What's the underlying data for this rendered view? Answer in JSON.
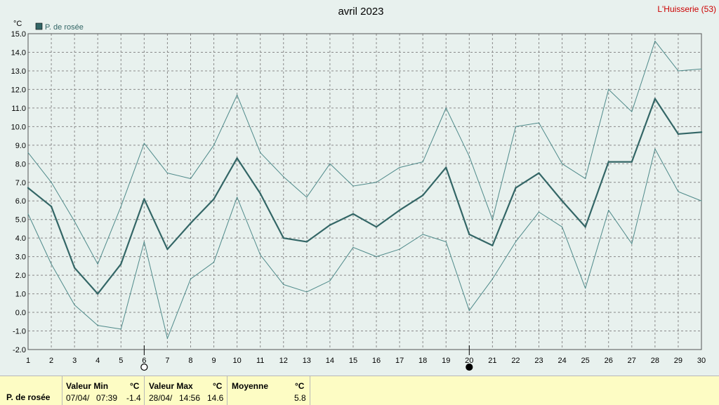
{
  "location": "L'Huisserie (53)",
  "chart_data": {
    "type": "line",
    "title": "avril 2023",
    "ylabel": "°C",
    "xlabel": "",
    "x": [
      1,
      2,
      3,
      4,
      5,
      6,
      7,
      8,
      9,
      10,
      11,
      12,
      13,
      14,
      15,
      16,
      17,
      18,
      19,
      20,
      21,
      22,
      23,
      24,
      25,
      26,
      27,
      28,
      29,
      30
    ],
    "xlim": [
      1,
      30
    ],
    "ylim": [
      -2.0,
      15.0
    ],
    "yticks": [
      "-2.0",
      "-1.0",
      "0.0",
      "1.0",
      "2.0",
      "3.0",
      "4.0",
      "5.0",
      "6.0",
      "7.0",
      "8.0",
      "9.0",
      "10.0",
      "11.0",
      "12.0",
      "13.0",
      "14.0",
      "15.0"
    ],
    "grid": true,
    "legend_position": "top-left",
    "series": [
      {
        "name": "P. de rosée",
        "role": "mean",
        "color": "#336666",
        "values": [
          6.7,
          5.7,
          2.4,
          1.0,
          2.6,
          6.1,
          3.4,
          4.8,
          6.1,
          8.3,
          6.4,
          4.0,
          3.8,
          4.7,
          5.3,
          4.6,
          5.5,
          6.3,
          7.8,
          4.2,
          3.6,
          6.7,
          7.5,
          6.0,
          4.6,
          8.1,
          8.1,
          11.5,
          9.6,
          9.7
        ]
      },
      {
        "role": "max",
        "color": "#4f8a8a",
        "values": [
          8.6,
          7.0,
          4.9,
          2.6,
          5.7,
          9.1,
          7.5,
          7.2,
          9.0,
          11.7,
          8.6,
          7.3,
          6.2,
          8.0,
          6.8,
          7.0,
          7.8,
          8.1,
          11.0,
          8.4,
          5.0,
          10.0,
          10.2,
          8.0,
          7.2,
          12.0,
          10.8,
          14.6,
          13.0,
          13.1
        ]
      },
      {
        "role": "min",
        "color": "#4f8a8a",
        "values": [
          5.3,
          2.6,
          0.4,
          -0.7,
          -0.9,
          3.8,
          -1.4,
          1.8,
          2.7,
          6.2,
          3.1,
          1.5,
          1.1,
          1.7,
          3.5,
          3.0,
          3.4,
          4.2,
          3.8,
          0.1,
          1.8,
          3.8,
          5.4,
          4.6,
          1.3,
          5.5,
          3.7,
          8.8,
          6.5,
          6.0
        ]
      }
    ],
    "moon_markers": [
      {
        "day": 6,
        "phase": "full-moon"
      },
      {
        "day": 20,
        "phase": "new-moon"
      }
    ]
  },
  "stats": {
    "series_label": "P. de rosée",
    "min": {
      "label": "Valeur Min",
      "unit": "°C",
      "date": "07/04/",
      "time": "07:39",
      "value": "-1.4"
    },
    "max": {
      "label": "Valeur Max",
      "unit": "°C",
      "date": "28/04/",
      "time": "14:56",
      "value": "14.6"
    },
    "mean": {
      "label": "Moyenne",
      "unit": "°C",
      "value": "5.8"
    }
  }
}
